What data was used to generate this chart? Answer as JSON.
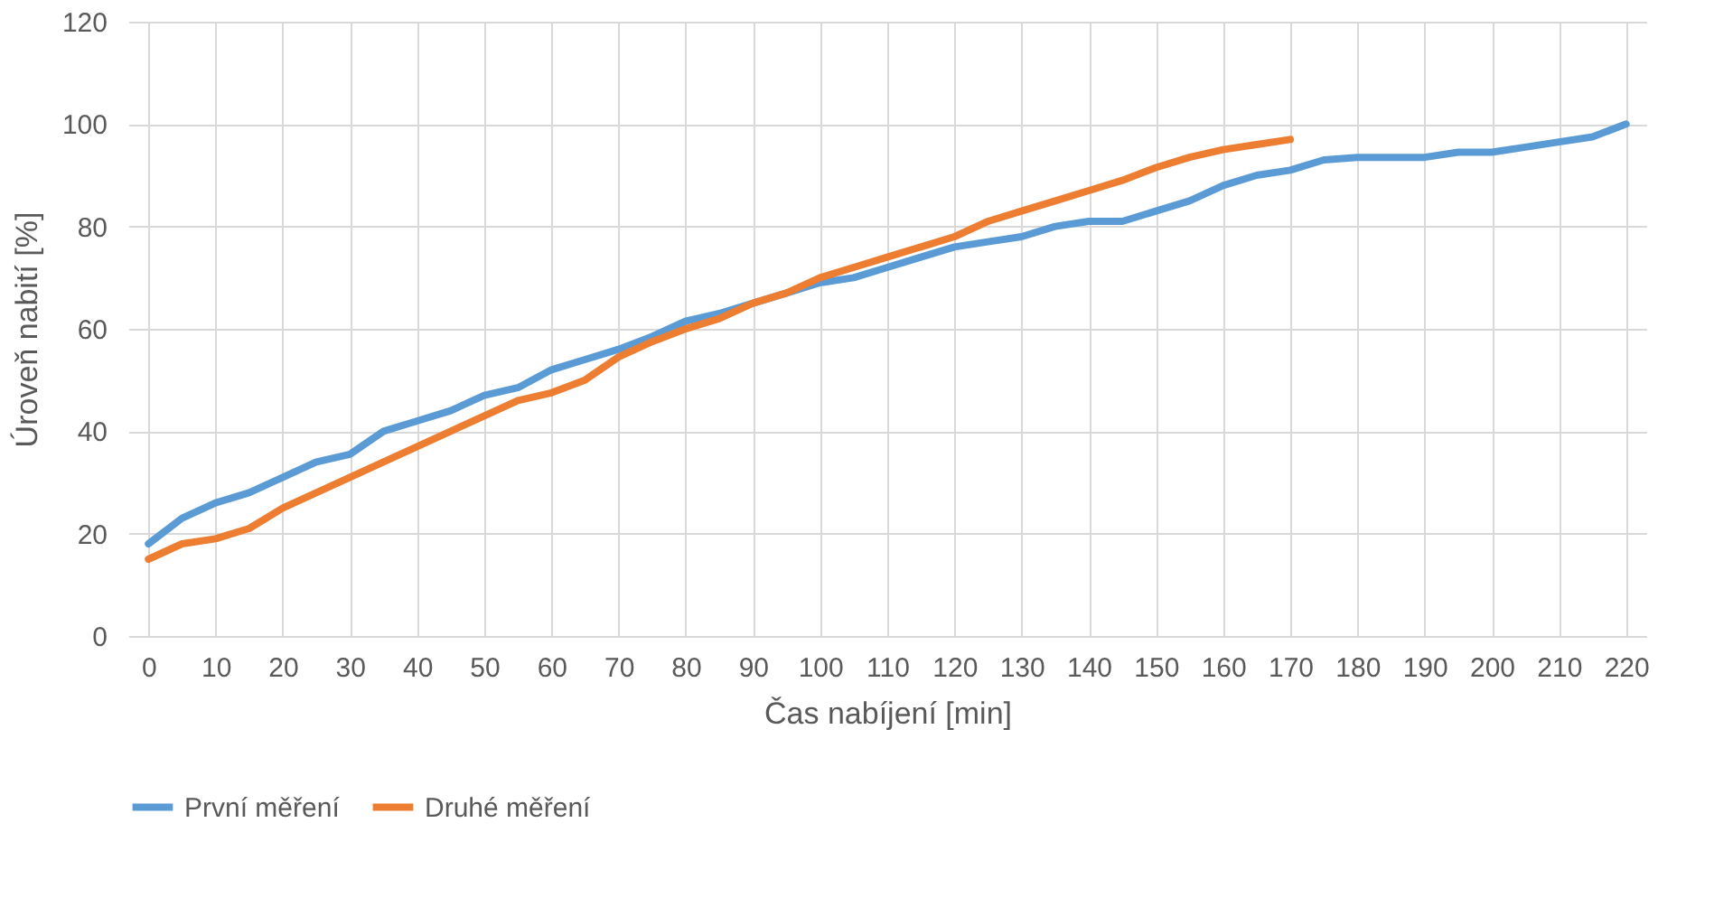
{
  "chart_data": {
    "type": "line",
    "xlabel": "Čas nabíjení [min]",
    "ylabel": "Úroveň nabití [%]",
    "x": [
      0,
      5,
      10,
      15,
      20,
      25,
      30,
      35,
      40,
      45,
      50,
      55,
      60,
      65,
      70,
      75,
      80,
      85,
      90,
      95,
      100,
      105,
      110,
      115,
      120,
      125,
      130,
      135,
      140,
      145,
      150,
      155,
      160,
      165,
      170,
      175,
      180,
      185,
      190,
      195,
      200,
      205,
      210,
      215,
      220
    ],
    "series": [
      {
        "name": "První měření",
        "color": "#5b9bd5",
        "values": [
          18,
          23,
          26,
          28,
          31,
          34,
          35.5,
          40,
          42,
          44,
          47,
          48.5,
          52,
          54,
          56,
          58.5,
          61.5,
          63,
          65,
          67,
          69,
          70,
          72,
          74,
          76,
          77,
          78,
          80,
          81,
          81,
          83,
          85,
          88,
          90,
          91,
          93,
          93.5,
          93.5,
          93.5,
          94.5,
          94.5,
          95.5,
          96.5,
          97.5,
          100
        ]
      },
      {
        "name": "Druhé měření",
        "color": "#ed7d31",
        "values": [
          15,
          18,
          19,
          21,
          25,
          28,
          31,
          34,
          37,
          40,
          43,
          46,
          47.5,
          50,
          54.5,
          57.5,
          60,
          62,
          65,
          67,
          70,
          72,
          74,
          76,
          78,
          81,
          83,
          85,
          87,
          89,
          91.5,
          93.5,
          95,
          96,
          97,
          null,
          null,
          null,
          null,
          null,
          null,
          null,
          null,
          null,
          null
        ]
      }
    ],
    "xlim": [
      -3,
      223
    ],
    "xticks": [
      0,
      10,
      20,
      30,
      40,
      50,
      60,
      70,
      80,
      90,
      100,
      110,
      120,
      130,
      140,
      150,
      160,
      170,
      180,
      190,
      200,
      210,
      220
    ],
    "ylim": [
      0,
      120
    ],
    "yticks": [
      0,
      20,
      40,
      60,
      80,
      100,
      120
    ],
    "grid": true,
    "legend": "bottom",
    "marker": "none",
    "line_style": "solid"
  }
}
